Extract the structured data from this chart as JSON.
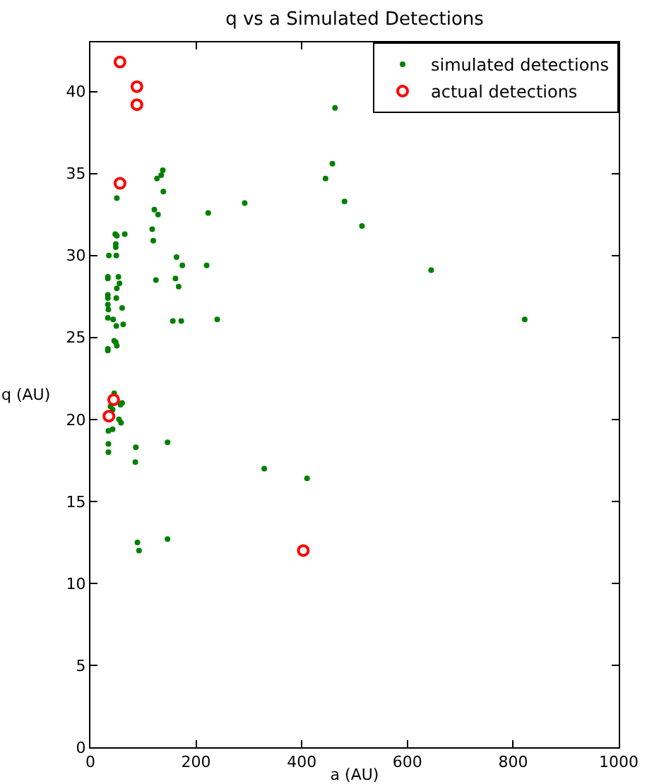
{
  "chart_data": {
    "type": "scatter",
    "title": "q vs a Simulated Detections",
    "xlabel": "a (AU)",
    "ylabel": "q (AU)",
    "xlim": [
      0,
      1000
    ],
    "ylim": [
      0,
      43
    ],
    "xticks": [
      0,
      200,
      400,
      600,
      800,
      1000
    ],
    "yticks": [
      0,
      5,
      10,
      15,
      20,
      25,
      30,
      35,
      40
    ],
    "grid": false,
    "legend": "top right",
    "series": [
      {
        "name": "simulated detections",
        "color": "#008000",
        "marker": "circle",
        "x": [
          50,
          47,
          50,
          65,
          48,
          48,
          35,
          49,
          33,
          33,
          53,
          55,
          50,
          33,
          33,
          49,
          60,
          33,
          34,
          33,
          43,
          62,
          49,
          45,
          48,
          50,
          33,
          33,
          45,
          38,
          42,
          60,
          57,
          54,
          58,
          34,
          42,
          34,
          34,
          86,
          85,
          146,
          329,
          89,
          92,
          146,
          137,
          134,
          126,
          138,
          121,
          128,
          117,
          119,
          163,
          174,
          124,
          161,
          167,
          156,
          172,
          240,
          220,
          223,
          292,
          463,
          458,
          445,
          481,
          514,
          645,
          822,
          410
        ],
        "values": [
          33.5,
          31.3,
          31.2,
          31.3,
          30.7,
          30.5,
          30.0,
          30.0,
          28.7,
          28.6,
          28.7,
          28.3,
          28.0,
          27.6,
          27.4,
          27.4,
          26.8,
          27.0,
          26.7,
          26.2,
          26.1,
          25.8,
          25.7,
          24.8,
          24.7,
          24.5,
          24.3,
          24.2,
          21.6,
          20.8,
          20.6,
          21.0,
          20.9,
          20.0,
          19.8,
          19.3,
          19.4,
          18.5,
          18.0,
          18.3,
          17.4,
          18.6,
          17.0,
          12.5,
          12.0,
          12.7,
          35.2,
          34.9,
          34.7,
          33.9,
          32.8,
          32.5,
          31.6,
          30.9,
          29.9,
          29.4,
          28.5,
          28.6,
          28.1,
          26.0,
          26.0,
          26.1,
          29.4,
          32.6,
          33.2,
          39.0,
          35.6,
          34.7,
          33.3,
          31.8,
          29.1,
          26.1,
          16.4
        ]
      },
      {
        "name": "actual detections",
        "color": "#ff0000",
        "marker": "circle-open",
        "x": [
          56,
          88,
          88,
          56,
          44,
          35,
          403
        ],
        "values": [
          41.8,
          40.3,
          39.2,
          34.4,
          21.2,
          20.2,
          12.0
        ]
      }
    ]
  }
}
